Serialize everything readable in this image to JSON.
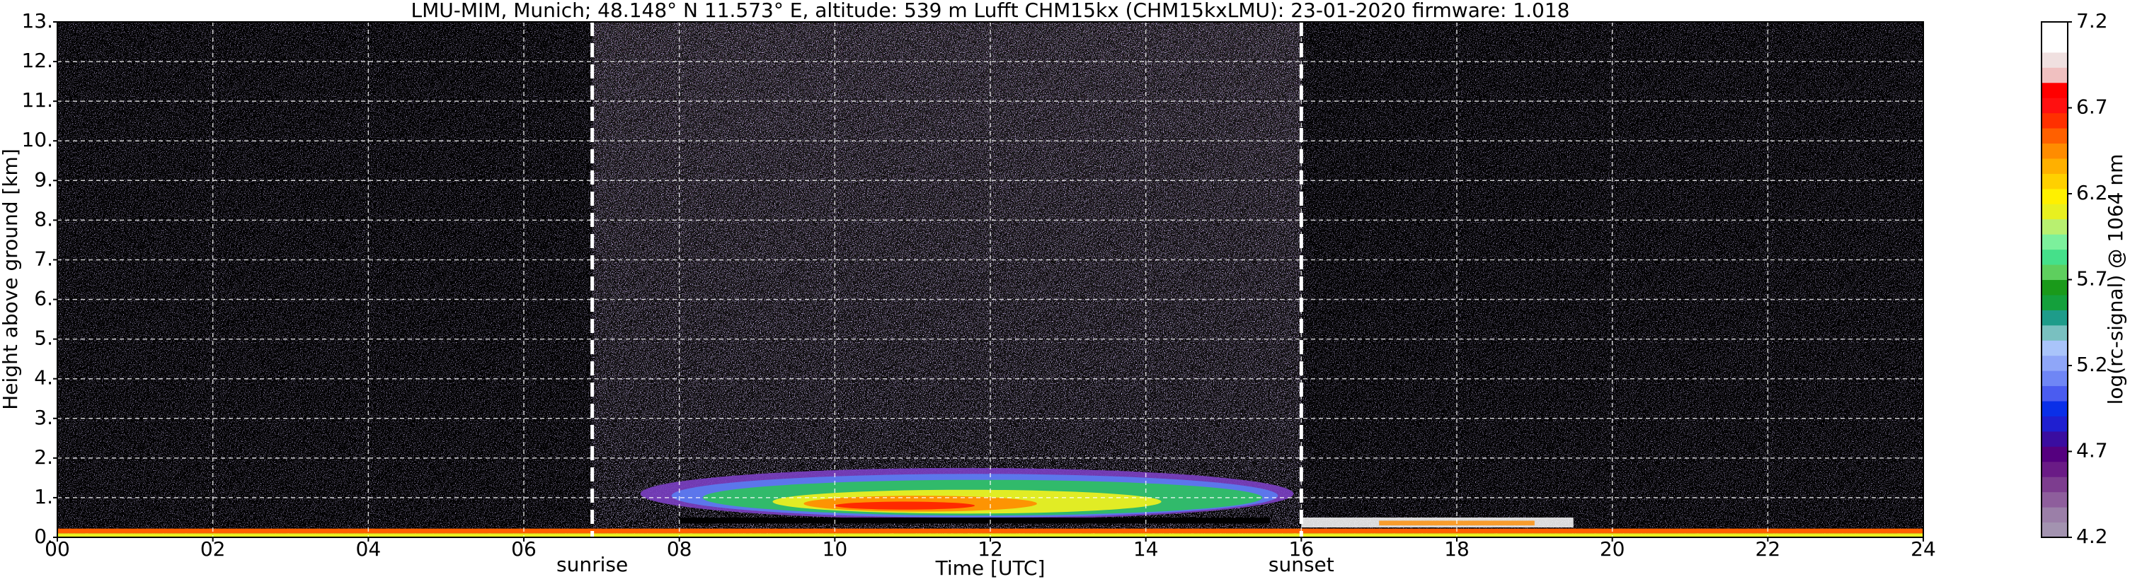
{
  "chart_data": {
    "type": "heatmap",
    "title": "LMU-MIM, Munich; 48.148° N 11.573° E, altitude: 539 m    Lufft CHM15kx (CHM15kxLMU): 23-01-2020    firmware: 1.018",
    "x_label": "Time [UTC]",
    "y_label": "Height above ground [km]",
    "xlim": [
      0,
      24
    ],
    "xticks": [
      {
        "value": 0,
        "label": "00"
      },
      {
        "value": 2,
        "label": "02"
      },
      {
        "value": 4,
        "label": "04"
      },
      {
        "value": 6,
        "label": "06"
      },
      {
        "value": 8,
        "label": "08"
      },
      10,
      12,
      14,
      16,
      18,
      20,
      22,
      24
    ],
    "ylim": [
      0,
      13
    ],
    "yticks": [
      {
        "value": 0,
        "label": "0."
      },
      {
        "value": 1,
        "label": "1."
      },
      {
        "value": 2,
        "label": "2."
      },
      {
        "value": 3,
        "label": "3."
      },
      {
        "value": 4,
        "label": "4."
      },
      {
        "value": 5,
        "label": "5."
      },
      {
        "value": 6,
        "label": "6."
      },
      {
        "value": 7,
        "label": "7."
      },
      {
        "value": 8,
        "label": "8."
      },
      {
        "value": 9,
        "label": "9."
      },
      {
        "value": 10,
        "label": "10."
      },
      {
        "value": 11,
        "label": "11."
      },
      {
        "value": 12,
        "label": "12."
      },
      {
        "value": 13,
        "label": "13."
      }
    ],
    "grid": true,
    "grid_color": "#ffffff",
    "annotations": [
      {
        "text": "sunrise",
        "x": 6.88
      },
      {
        "text": "sunset",
        "x": 16.0
      }
    ],
    "colorbar": {
      "label": "log(rc-signal) @ 1064 nm",
      "lim": [
        4.2,
        7.2
      ],
      "ticks": [
        4.2,
        4.7,
        5.2,
        5.7,
        6.2,
        6.7,
        7.2
      ],
      "colors": [
        "#a393b0",
        "#9b7fa8",
        "#8e5e9c",
        "#7d3d8f",
        "#6a1b86",
        "#55007f",
        "#3a0da0",
        "#1f1fd0",
        "#0a2fe8",
        "#4a5cf0",
        "#6f86f5",
        "#8fa6f8",
        "#a9c4fa",
        "#79c0c0",
        "#1e9c8a",
        "#14a03c",
        "#1a9a1a",
        "#5ecf5e",
        "#45e08a",
        "#7cf09c",
        "#b8f070",
        "#e8f020",
        "#fff000",
        "#ffd000",
        "#ffb000",
        "#ff8c00",
        "#ff6000",
        "#ff3000",
        "#ff1010",
        "#ff0000",
        "#f0c0c0",
        "#f0e0e0",
        "#ffffff",
        "#ffffff"
      ]
    }
  }
}
